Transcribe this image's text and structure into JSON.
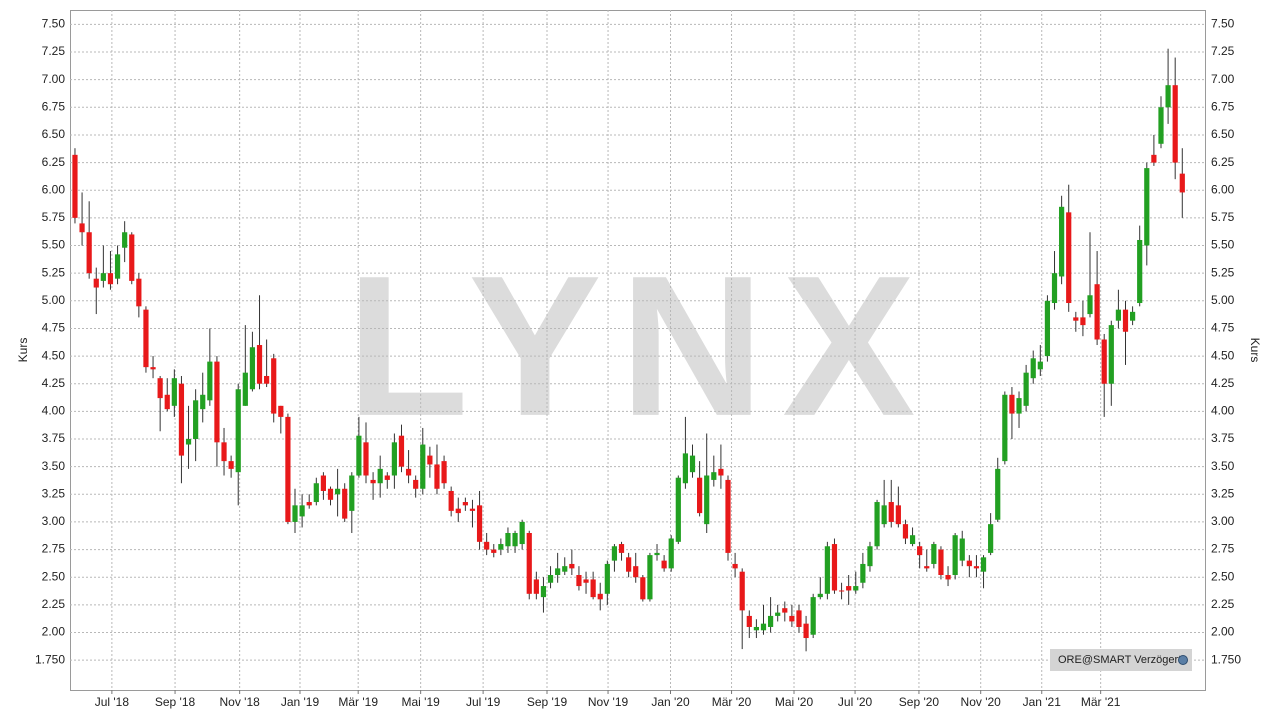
{
  "chart_data": {
    "type": "candlestick",
    "y_label": "Kurs",
    "watermark": "LYNX",
    "badge": "ORE@SMART Verzögert",
    "up_color": "#22a022",
    "down_color": "#e8191a",
    "grid": true,
    "ylim": [
      1.48,
      7.63
    ],
    "yticks": [
      {
        "value": 7.5,
        "label": "7.50"
      },
      7.25,
      {
        "value": 7.0,
        "label": "7.00"
      },
      6.75,
      {
        "value": 6.5,
        "label": "6.50"
      },
      6.25,
      {
        "value": 6.0,
        "label": "6.00"
      },
      5.75,
      {
        "value": 5.5,
        "label": "5.50"
      },
      5.25,
      {
        "value": 5.0,
        "label": "5.00"
      },
      4.75,
      {
        "value": 4.5,
        "label": "4.50"
      },
      4.25,
      {
        "value": 4.0,
        "label": "4.00"
      },
      3.75,
      {
        "value": 3.5,
        "label": "3.50"
      },
      3.25,
      {
        "value": 3.0,
        "label": "3.00"
      },
      2.75,
      {
        "value": 2.5,
        "label": "2.50"
      },
      2.25,
      {
        "value": 2.0,
        "label": "2.00"
      },
      {
        "value": 1.75,
        "label": "1.750"
      }
    ],
    "xlim": [
      -0.7,
      159.2
    ],
    "xticks": [
      {
        "value": 5.2,
        "label": "Jul '18"
      },
      {
        "value": 14.1,
        "label": "Sep '18"
      },
      {
        "value": 23.2,
        "label": "Nov '18"
      },
      {
        "value": 31.7,
        "label": "Jan '19"
      },
      {
        "value": 39.9,
        "label": "Mär '19"
      },
      {
        "value": 48.7,
        "label": "Mai '19"
      },
      {
        "value": 57.5,
        "label": "Jul '19"
      },
      {
        "value": 66.5,
        "label": "Sep '19"
      },
      {
        "value": 75.1,
        "label": "Nov '19"
      },
      {
        "value": 83.9,
        "label": "Jan '20"
      },
      {
        "value": 92.5,
        "label": "Mär '20"
      },
      {
        "value": 101.3,
        "label": "Mai '20"
      },
      {
        "value": 109.9,
        "label": "Jul '20"
      },
      {
        "value": 118.9,
        "label": "Sep '20"
      },
      {
        "value": 127.6,
        "label": "Nov '20"
      },
      {
        "value": 136.2,
        "label": "Jan '21"
      },
      {
        "value": 144.5,
        "label": "Mär '21"
      }
    ],
    "open": [
      6.32,
      5.7,
      5.62,
      5.2,
      5.18,
      5.25,
      5.2,
      5.48,
      5.6,
      5.2,
      4.92,
      4.4,
      4.3,
      4.15,
      4.05,
      4.25,
      3.7,
      3.75,
      4.02,
      4.1,
      4.45,
      3.72,
      3.55,
      3.45,
      4.05,
      4.2,
      4.6,
      4.32,
      4.48,
      4.05,
      3.95,
      3.0,
      3.05,
      3.18,
      3.18,
      3.42,
      3.3,
      3.25,
      3.3,
      3.1,
      3.42,
      3.72,
      3.38,
      3.35,
      3.42,
      3.42,
      3.78,
      3.48,
      3.38,
      3.3,
      3.6,
      3.52,
      3.55,
      3.28,
      3.12,
      3.18,
      3.12,
      3.15,
      2.82,
      2.75,
      2.75,
      2.78,
      2.78,
      2.8,
      2.9,
      2.48,
      2.32,
      2.45,
      2.52,
      2.55,
      2.62,
      2.52,
      2.48,
      2.48,
      2.35,
      2.35,
      2.65,
      2.8,
      2.68,
      2.6,
      2.5,
      2.3,
      2.7,
      2.65,
      2.58,
      2.82,
      3.35,
      3.45,
      3.4,
      2.98,
      3.38,
      3.48,
      3.38,
      2.62,
      2.55,
      2.15,
      2.02,
      2.02,
      2.05,
      2.15,
      2.22,
      2.15,
      2.2,
      2.08,
      1.98,
      2.32,
      2.35,
      2.8,
      2.38,
      2.42,
      2.38,
      2.45,
      2.6,
      2.78,
      2.98,
      3.18,
      3.15,
      2.98,
      2.8,
      2.78,
      2.6,
      2.62,
      2.75,
      2.52,
      2.52,
      2.65,
      2.65,
      2.6,
      2.55,
      2.72,
      3.02,
      3.55,
      4.15,
      3.98,
      4.05,
      4.3,
      4.38,
      4.5,
      4.98,
      5.22,
      5.8,
      4.85,
      4.85,
      4.88,
      5.15,
      4.65,
      4.25,
      4.82,
      4.92,
      4.82,
      4.98,
      5.5,
      6.32,
      6.42,
      6.75,
      6.95,
      6.15
    ],
    "high": [
      6.38,
      5.98,
      5.9,
      5.3,
      5.5,
      5.45,
      5.5,
      5.72,
      5.62,
      5.25,
      4.95,
      4.5,
      4.32,
      4.3,
      4.38,
      4.32,
      4.05,
      4.2,
      4.35,
      4.75,
      4.5,
      3.85,
      3.6,
      4.25,
      4.78,
      4.72,
      5.05,
      4.65,
      4.52,
      4.05,
      3.98,
      3.3,
      3.25,
      3.25,
      3.4,
      3.45,
      3.32,
      3.48,
      3.35,
      3.45,
      3.95,
      3.9,
      3.45,
      3.6,
      3.45,
      3.8,
      3.88,
      3.65,
      3.42,
      3.85,
      3.68,
      3.7,
      3.6,
      3.32,
      3.22,
      3.22,
      3.2,
      3.28,
      2.9,
      2.8,
      2.85,
      2.95,
      2.92,
      3.02,
      2.92,
      2.55,
      2.5,
      2.6,
      2.72,
      2.68,
      2.75,
      2.6,
      2.55,
      2.55,
      2.45,
      2.65,
      2.8,
      2.82,
      2.72,
      2.72,
      2.52,
      2.72,
      2.8,
      2.7,
      2.88,
      3.42,
      3.95,
      3.7,
      3.55,
      3.8,
      3.6,
      3.7,
      3.42,
      2.72,
      2.58,
      2.2,
      2.12,
      2.25,
      2.32,
      2.25,
      2.28,
      2.25,
      2.25,
      2.15,
      2.35,
      2.5,
      2.82,
      2.85,
      2.45,
      2.52,
      2.55,
      2.72,
      2.82,
      3.2,
      3.38,
      3.38,
      3.32,
      3.02,
      2.95,
      2.82,
      2.75,
      2.82,
      2.78,
      2.6,
      2.9,
      2.92,
      2.7,
      2.7,
      2.7,
      3.08,
      3.58,
      4.18,
      4.22,
      4.18,
      4.42,
      4.55,
      4.6,
      5.05,
      5.45,
      5.95,
      6.05,
      4.9,
      5.0,
      5.62,
      5.45,
      4.7,
      4.82,
      5.1,
      5.0,
      4.95,
      5.68,
      6.25,
      6.5,
      6.85,
      7.28,
      7.2,
      6.38
    ],
    "low": [
      5.7,
      5.5,
      5.2,
      4.88,
      5.12,
      5.1,
      5.15,
      5.35,
      5.15,
      4.85,
      4.35,
      4.3,
      3.82,
      4.0,
      3.95,
      3.35,
      3.48,
      3.55,
      3.9,
      4.05,
      3.5,
      3.42,
      3.4,
      3.15,
      4.05,
      4.18,
      4.2,
      4.22,
      3.9,
      3.8,
      2.98,
      2.9,
      2.95,
      3.12,
      3.15,
      3.2,
      3.15,
      3.05,
      3.0,
      2.9,
      3.4,
      3.35,
      3.2,
      3.22,
      3.3,
      3.3,
      3.45,
      3.35,
      3.22,
      3.25,
      3.4,
      3.25,
      3.3,
      3.05,
      3.0,
      3.1,
      2.95,
      2.75,
      2.7,
      2.68,
      2.7,
      2.72,
      2.72,
      2.75,
      2.3,
      2.3,
      2.18,
      2.4,
      2.45,
      2.52,
      2.52,
      2.38,
      2.35,
      2.3,
      2.2,
      2.25,
      2.55,
      2.65,
      2.5,
      2.45,
      2.28,
      2.28,
      2.65,
      2.55,
      2.55,
      2.8,
      3.3,
      3.4,
      3.05,
      2.9,
      3.32,
      3.3,
      2.65,
      2.5,
      1.85,
      1.95,
      1.95,
      1.98,
      2.0,
      2.1,
      2.1,
      2.05,
      2.0,
      1.83,
      1.95,
      2.3,
      2.3,
      2.35,
      2.3,
      2.25,
      2.35,
      2.4,
      2.55,
      2.75,
      2.95,
      2.95,
      2.95,
      2.8,
      2.78,
      2.58,
      2.55,
      2.58,
      2.48,
      2.42,
      2.48,
      2.6,
      2.5,
      2.5,
      2.4,
      2.7,
      3.0,
      3.52,
      3.75,
      3.85,
      4.0,
      4.25,
      4.32,
      4.45,
      4.92,
      5.15,
      4.9,
      4.72,
      4.68,
      4.85,
      4.6,
      3.95,
      4.05,
      4.75,
      4.42,
      4.78,
      4.95,
      5.32,
      6.22,
      6.38,
      6.6,
      6.1,
      5.75
    ],
    "close": [
      5.75,
      5.62,
      5.25,
      5.12,
      5.25,
      5.15,
      5.42,
      5.62,
      5.18,
      4.95,
      4.4,
      4.38,
      4.12,
      4.02,
      4.3,
      3.6,
      3.75,
      4.1,
      4.15,
      4.45,
      3.72,
      3.55,
      3.48,
      4.2,
      4.35,
      4.58,
      4.25,
      4.25,
      3.98,
      3.95,
      3.0,
      3.15,
      3.15,
      3.15,
      3.35,
      3.28,
      3.2,
      3.3,
      3.03,
      3.42,
      3.78,
      3.42,
      3.35,
      3.48,
      3.38,
      3.72,
      3.5,
      3.42,
      3.3,
      3.7,
      3.52,
      3.3,
      3.35,
      3.1,
      3.08,
      3.15,
      3.1,
      2.82,
      2.75,
      2.72,
      2.8,
      2.9,
      2.9,
      3.0,
      2.35,
      2.35,
      2.42,
      2.52,
      2.58,
      2.6,
      2.58,
      2.42,
      2.45,
      2.32,
      2.3,
      2.62,
      2.78,
      2.72,
      2.55,
      2.5,
      2.3,
      2.7,
      2.72,
      2.58,
      2.85,
      3.4,
      3.62,
      3.6,
      3.08,
      3.42,
      3.45,
      3.42,
      2.72,
      2.58,
      2.2,
      2.05,
      2.05,
      2.08,
      2.15,
      2.18,
      2.18,
      2.1,
      2.05,
      1.95,
      2.32,
      2.35,
      2.78,
      2.38,
      2.38,
      2.38,
      2.42,
      2.62,
      2.78,
      3.18,
      3.15,
      3.0,
      2.98,
      2.85,
      2.88,
      2.7,
      2.58,
      2.8,
      2.52,
      2.48,
      2.88,
      2.85,
      2.6,
      2.58,
      2.68,
      2.98,
      3.48,
      4.15,
      3.98,
      4.12,
      4.35,
      4.48,
      4.45,
      5.0,
      5.25,
      5.85,
      4.98,
      4.82,
      4.78,
      5.05,
      4.65,
      4.25,
      4.78,
      4.92,
      4.72,
      4.9,
      5.55,
      6.2,
      6.25,
      6.75,
      6.95,
      6.25,
      5.98
    ]
  }
}
